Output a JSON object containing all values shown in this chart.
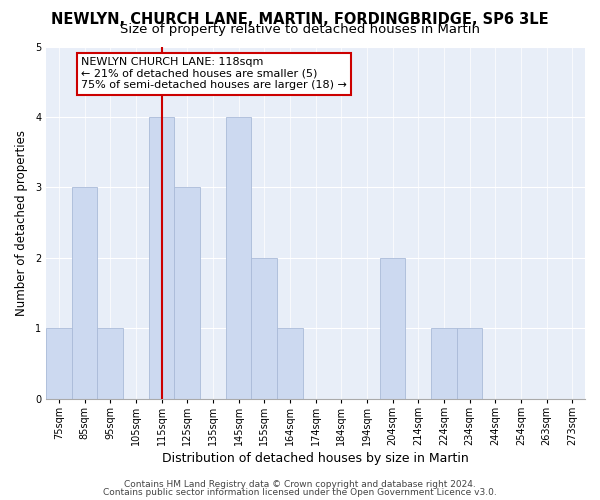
{
  "title": "NEWLYN, CHURCH LANE, MARTIN, FORDINGBRIDGE, SP6 3LE",
  "subtitle": "Size of property relative to detached houses in Martin",
  "xlabel": "Distribution of detached houses by size in Martin",
  "ylabel": "Number of detached properties",
  "bar_labels": [
    "75sqm",
    "85sqm",
    "95sqm",
    "105sqm",
    "115sqm",
    "125sqm",
    "135sqm",
    "145sqm",
    "155sqm",
    "164sqm",
    "174sqm",
    "184sqm",
    "194sqm",
    "204sqm",
    "214sqm",
    "224sqm",
    "234sqm",
    "244sqm",
    "254sqm",
    "263sqm",
    "273sqm"
  ],
  "bar_values": [
    1,
    3,
    1,
    0,
    4,
    3,
    0,
    4,
    2,
    1,
    0,
    0,
    0,
    2,
    0,
    1,
    1,
    0,
    0,
    0,
    0
  ],
  "bar_color": "#ccd9f0",
  "bar_edge_color": "#aabbd8",
  "property_line_index": 4,
  "property_line_color": "#cc0000",
  "annotation_title": "NEWLYN CHURCH LANE: 118sqm",
  "annotation_line1": "← 21% of detached houses are smaller (5)",
  "annotation_line2": "75% of semi-detached houses are larger (18) →",
  "annotation_box_edge": "#cc0000",
  "ylim": [
    0,
    5
  ],
  "yticks": [
    0,
    1,
    2,
    3,
    4,
    5
  ],
  "footer_line1": "Contains HM Land Registry data © Crown copyright and database right 2024.",
  "footer_line2": "Contains public sector information licensed under the Open Government Licence v3.0.",
  "background_color": "#ffffff",
  "plot_background": "#e8eef8",
  "title_fontsize": 10.5,
  "subtitle_fontsize": 9.5,
  "xlabel_fontsize": 9,
  "ylabel_fontsize": 8.5,
  "tick_fontsize": 7,
  "annotation_fontsize": 8,
  "footer_fontsize": 6.5
}
